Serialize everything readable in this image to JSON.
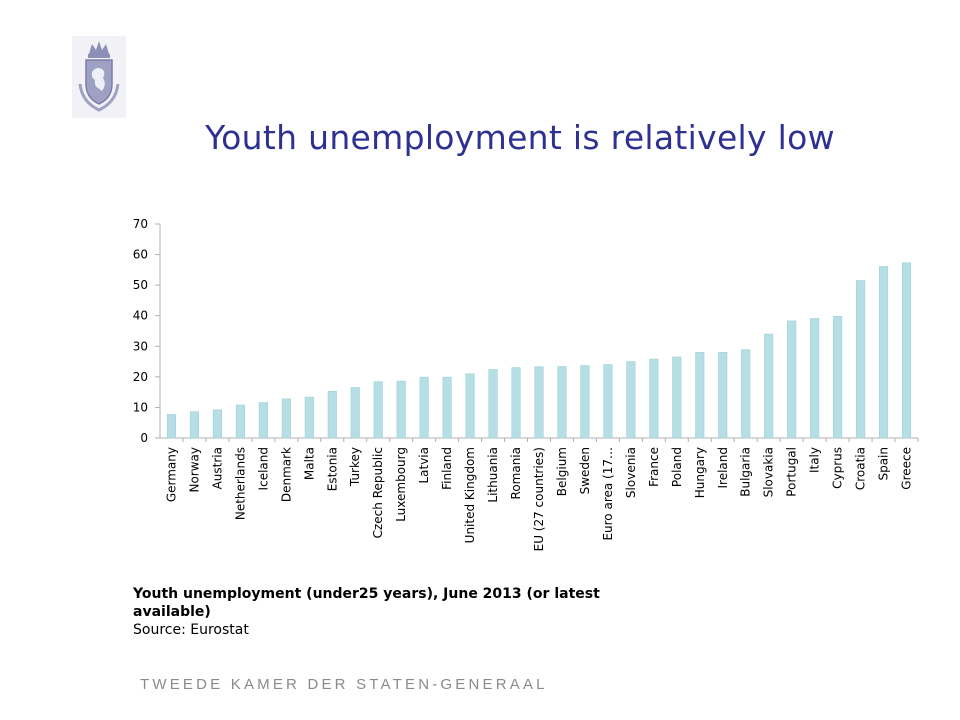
{
  "header": {
    "title": "Youth unemployment is relatively low"
  },
  "caption": {
    "line": "Youth unemployment (under25 years), June 2013 (or latest available)",
    "source": "Source: Eurostat"
  },
  "footer": {
    "text": "TWEEDE KAMER DER STATEN-GENERAAL"
  },
  "colors": {
    "bar_fill": "#b5dfe4",
    "bar_stroke": "#9fd0d6",
    "axis": "#b0b0b0",
    "title": "#2e3192"
  },
  "logo": {
    "icon": "crest-icon"
  },
  "chart_data": {
    "type": "bar",
    "categories": [
      "Germany",
      "Norway",
      "Austria",
      "Netherlands",
      "Iceland",
      "Denmark",
      "Malta",
      "Estonia",
      "Turkey",
      "Czech Republic",
      "Luxembourg",
      "Latvia",
      "Finland",
      "United Kingdom",
      "Lithuania",
      "Romania",
      "EU (27 countries)",
      "Belgium",
      "Sweden",
      "Euro area (17…",
      "Slovenia",
      "France",
      "Poland",
      "Hungary",
      "Ireland",
      "Bulgaria",
      "Slovakia",
      "Portugal",
      "Italy",
      "Cyprus",
      "Croatia",
      "Spain",
      "Greece"
    ],
    "values": [
      7.7,
      8.6,
      9.2,
      10.8,
      11.6,
      12.8,
      13.4,
      15.3,
      16.5,
      18.4,
      18.6,
      19.9,
      19.9,
      21.0,
      22.4,
      23.0,
      23.3,
      23.4,
      23.7,
      24.0,
      25.0,
      25.8,
      26.5,
      28.0,
      28.0,
      28.9,
      34.0,
      38.3,
      39.1,
      39.8,
      51.5,
      56.1,
      57.3
    ],
    "title": "",
    "xlabel": "",
    "ylabel": "",
    "ylim": [
      0,
      70
    ],
    "yticks": [
      0,
      10,
      20,
      30,
      40,
      50,
      60,
      70
    ],
    "grid": false,
    "legend": "none"
  }
}
